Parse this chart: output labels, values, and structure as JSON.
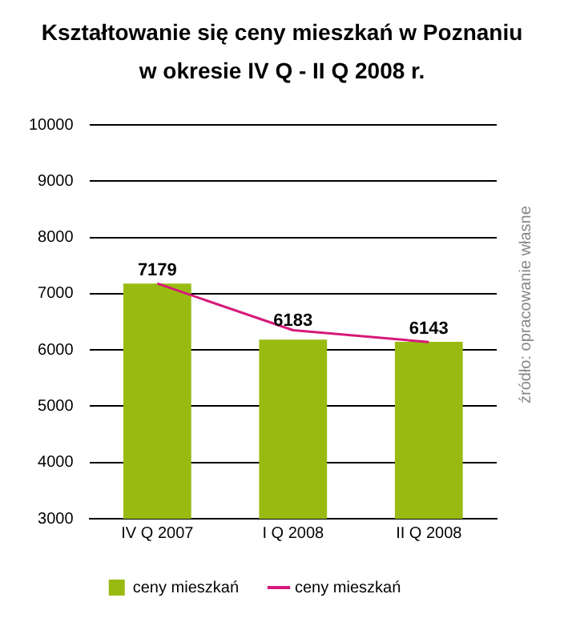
{
  "chart_data": {
    "type": "bar",
    "title": "Kształtowanie się ceny mieszkań w Poznaniu\nw okresie IV Q - II Q 2008 r.",
    "categories": [
      "IV Q 2007",
      "I Q 2008",
      "II Q 2008"
    ],
    "series": [
      {
        "name": "ceny mieszkań",
        "color": "#99bb11",
        "values": [
          7179,
          6183,
          6143
        ],
        "value_labels": [
          "7179",
          "6183",
          "6143"
        ]
      },
      {
        "name": "ceny mieszkań",
        "type": "line",
        "color": "#d6197a",
        "values": [
          7180,
          6350,
          6140
        ],
        "marker": "none"
      }
    ],
    "ylim": [
      3000,
      10000
    ],
    "yticks": [
      3000,
      4000,
      5000,
      6000,
      7000,
      8000,
      9000,
      10000
    ],
    "grid": "y",
    "legend": "bottom",
    "annotations": [
      "źródło: opracowanie własne"
    ]
  }
}
